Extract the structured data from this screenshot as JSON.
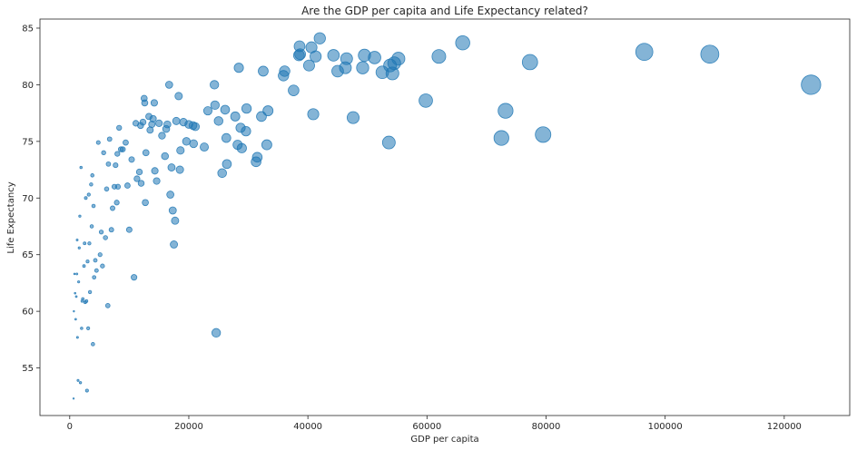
{
  "chart_data": {
    "type": "scatter",
    "title": "Are the GDP per capita and Life Expectancy related?",
    "xlabel": "GDP per capita",
    "ylabel": "Life Expectancy",
    "xlim": [
      -5000,
      131000
    ],
    "ylim": [
      50.8,
      85.8
    ],
    "xticks": [
      0,
      20000,
      40000,
      60000,
      80000,
      100000,
      120000
    ],
    "yticks": [
      55,
      60,
      65,
      70,
      75,
      80,
      85
    ],
    "grid": false,
    "marker_size_encodes": "GDP per capita",
    "marker_color": "#1f77b4",
    "marker_alpha": 0.55,
    "points": [
      [
        124500,
        80.0
      ],
      [
        107500,
        82.7
      ],
      [
        96500,
        82.9
      ],
      [
        79500,
        75.6
      ],
      [
        77300,
        82.0
      ],
      [
        73200,
        77.7
      ],
      [
        72500,
        75.3
      ],
      [
        66000,
        83.7
      ],
      [
        62000,
        82.5
      ],
      [
        59800,
        78.6
      ],
      [
        55200,
        82.3
      ],
      [
        54500,
        81.9
      ],
      [
        54200,
        81.0
      ],
      [
        53800,
        81.7
      ],
      [
        53600,
        74.9
      ],
      [
        52500,
        81.1
      ],
      [
        51200,
        82.4
      ],
      [
        49500,
        82.6
      ],
      [
        49200,
        81.5
      ],
      [
        47600,
        77.1
      ],
      [
        46500,
        82.3
      ],
      [
        46300,
        81.5
      ],
      [
        45000,
        81.2
      ],
      [
        44300,
        82.6
      ],
      [
        42000,
        84.1
      ],
      [
        41300,
        82.5
      ],
      [
        40900,
        77.4
      ],
      [
        40600,
        83.3
      ],
      [
        40200,
        81.7
      ],
      [
        38700,
        82.7
      ],
      [
        38600,
        83.4
      ],
      [
        38500,
        82.6
      ],
      [
        37600,
        79.5
      ],
      [
        36100,
        81.2
      ],
      [
        35900,
        80.8
      ],
      [
        33300,
        77.7
      ],
      [
        33100,
        74.7
      ],
      [
        32500,
        81.2
      ],
      [
        32200,
        77.2
      ],
      [
        31500,
        73.6
      ],
      [
        31300,
        73.2
      ],
      [
        29700,
        77.9
      ],
      [
        29600,
        75.9
      ],
      [
        28900,
        74.4
      ],
      [
        28700,
        76.2
      ],
      [
        28400,
        81.5
      ],
      [
        28200,
        74.7
      ],
      [
        27800,
        77.2
      ],
      [
        26400,
        73.0
      ],
      [
        26300,
        75.3
      ],
      [
        26100,
        77.8
      ],
      [
        25600,
        72.2
      ],
      [
        25000,
        76.8
      ],
      [
        24600,
        58.1
      ],
      [
        24400,
        78.2
      ],
      [
        24300,
        80.0
      ],
      [
        23200,
        77.7
      ],
      [
        22600,
        74.5
      ],
      [
        21100,
        76.3
      ],
      [
        20800,
        74.8
      ],
      [
        20700,
        76.4
      ],
      [
        20000,
        76.5
      ],
      [
        19600,
        75.0
      ],
      [
        19100,
        76.7
      ],
      [
        18600,
        74.2
      ],
      [
        18500,
        72.5
      ],
      [
        18300,
        79.0
      ],
      [
        17900,
        76.8
      ],
      [
        17700,
        68.0
      ],
      [
        17500,
        65.9
      ],
      [
        17300,
        68.9
      ],
      [
        17100,
        72.7
      ],
      [
        16900,
        70.3
      ],
      [
        16700,
        80.0
      ],
      [
        16400,
        76.5
      ],
      [
        16200,
        76.1
      ],
      [
        16000,
        73.7
      ],
      [
        15500,
        75.5
      ],
      [
        15000,
        76.6
      ],
      [
        14600,
        71.5
      ],
      [
        14300,
        72.4
      ],
      [
        14200,
        78.4
      ],
      [
        14000,
        77.0
      ],
      [
        13800,
        76.5
      ],
      [
        13500,
        76.0
      ],
      [
        13300,
        77.2
      ],
      [
        12800,
        74.0
      ],
      [
        12700,
        69.6
      ],
      [
        12600,
        78.4
      ],
      [
        12500,
        78.8
      ],
      [
        12300,
        76.7
      ],
      [
        12000,
        71.3
      ],
      [
        11900,
        76.4
      ],
      [
        11700,
        72.3
      ],
      [
        11300,
        71.7
      ],
      [
        11100,
        76.6
      ],
      [
        10800,
        63.0
      ],
      [
        10400,
        73.4
      ],
      [
        10000,
        67.2
      ],
      [
        9700,
        71.1
      ],
      [
        9400,
        74.9
      ],
      [
        8900,
        74.3
      ],
      [
        8600,
        74.3
      ],
      [
        8300,
        76.2
      ],
      [
        8100,
        71.0
      ],
      [
        8000,
        73.9
      ],
      [
        7900,
        69.6
      ],
      [
        7700,
        72.9
      ],
      [
        7500,
        71.0
      ],
      [
        7200,
        69.1
      ],
      [
        7000,
        67.2
      ],
      [
        6700,
        75.2
      ],
      [
        6500,
        73.0
      ],
      [
        6400,
        60.5
      ],
      [
        6200,
        70.8
      ],
      [
        6000,
        66.5
      ],
      [
        5700,
        74.0
      ],
      [
        5500,
        64.0
      ],
      [
        5300,
        67.0
      ],
      [
        5100,
        65.0
      ],
      [
        4800,
        74.9
      ],
      [
        4500,
        63.6
      ],
      [
        4300,
        64.5
      ],
      [
        4100,
        63.0
      ],
      [
        4000,
        69.3
      ],
      [
        3900,
        57.1
      ],
      [
        3800,
        72.0
      ],
      [
        3700,
        67.5
      ],
      [
        3600,
        71.2
      ],
      [
        3400,
        61.7
      ],
      [
        3300,
        66.0
      ],
      [
        3200,
        70.3
      ],
      [
        3100,
        58.5
      ],
      [
        3000,
        64.4
      ],
      [
        2900,
        53.0
      ],
      [
        2800,
        60.9
      ],
      [
        2700,
        70.0
      ],
      [
        2600,
        60.8
      ],
      [
        2500,
        66.0
      ],
      [
        2400,
        64.0
      ],
      [
        2200,
        61.1
      ],
      [
        2100,
        60.9
      ],
      [
        2000,
        58.5
      ],
      [
        1900,
        72.7
      ],
      [
        1800,
        53.7
      ],
      [
        1700,
        68.4
      ],
      [
        1600,
        65.6
      ],
      [
        1500,
        62.6
      ],
      [
        1400,
        53.9
      ],
      [
        1300,
        57.7
      ],
      [
        1250,
        66.3
      ],
      [
        1200,
        63.3
      ],
      [
        1100,
        61.3
      ],
      [
        1000,
        59.3
      ],
      [
        900,
        61.6
      ],
      [
        800,
        63.3
      ],
      [
        700,
        60.0
      ],
      [
        650,
        52.3
      ]
    ]
  }
}
